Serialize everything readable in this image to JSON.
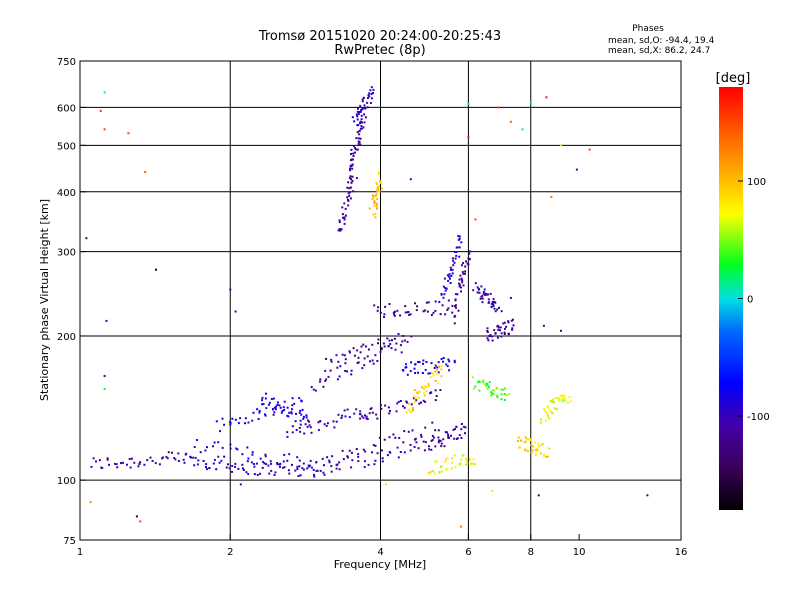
{
  "header": {
    "title_line1": "Tromsø 20151020 20:24:00-20:25:43",
    "title_line2": "RwPretec (8p)",
    "phases_title": "Phases",
    "phases_o": "mean, sd,O: -94.4, 19.4",
    "phases_x": "mean, sd,X:  86.2, 24.7"
  },
  "chart_data": {
    "type": "scatter",
    "title": "Tromsø 20151020 20:24:00-20:25:43",
    "subtitle": "RwPretec (8p)",
    "xlabel": "Frequency [MHz]",
    "ylabel": "Stationary phase Virtual Height [km]",
    "xscale": "log",
    "yscale": "log",
    "xlim": [
      1,
      16
    ],
    "ylim": [
      75,
      750
    ],
    "xticks": [
      1,
      2,
      4,
      6,
      8,
      10,
      16
    ],
    "yticks": [
      75,
      100,
      200,
      300,
      400,
      500,
      600,
      750
    ],
    "grid_x": [
      2,
      4,
      6,
      8
    ],
    "grid_y": [
      100,
      200,
      300,
      400,
      500,
      600
    ],
    "colorbar": {
      "label": "[deg]",
      "ticks": [
        100,
        0,
        -100
      ],
      "range": [
        -180,
        180
      ]
    },
    "traces": [
      {
        "name": "",
        "x": [
          1.05,
          1.6
        ],
        "y": [
          108,
          111
        ],
        "phase": -110
      },
      {
        "name": "",
        "x": [
          1.6,
          2.2
        ],
        "y": [
          111,
          106
        ],
        "phase": -100
      },
      {
        "name": "",
        "x": [
          2.2,
          3.0
        ],
        "y": [
          106,
          105
        ],
        "phase": -105
      },
      {
        "name": "",
        "x": [
          3.0,
          5.0
        ],
        "y": [
          105,
          118
        ],
        "phase": -100
      },
      {
        "name": "",
        "x": [
          5.0,
          5.9
        ],
        "y": [
          118,
          128
        ],
        "phase": -110
      },
      {
        "name": "",
        "x": [
          1.7,
          3.0
        ],
        "y": [
          118,
          108
        ],
        "phase": -95
      },
      {
        "name": "",
        "x": [
          3.0,
          5.2
        ],
        "y": [
          108,
          130
        ],
        "phase": -115
      },
      {
        "name": "",
        "x": [
          1.9,
          2.8
        ],
        "y": [
          130,
          145
        ],
        "phase": -90
      },
      {
        "name": "",
        "x": [
          2.6,
          3.8
        ],
        "y": [
          125,
          140
        ],
        "phase": -105
      },
      {
        "name": "",
        "x": [
          3.6,
          5.3
        ],
        "y": [
          135,
          150
        ],
        "phase": -110
      },
      {
        "name": "",
        "x": [
          2.3,
          2.9
        ],
        "y": [
          150,
          132
        ],
        "phase": -85
      },
      {
        "name": "",
        "x": [
          2.9,
          4.4
        ],
        "y": [
          158,
          190
        ],
        "phase": -110
      },
      {
        "name": "",
        "x": [
          3.1,
          4.6
        ],
        "y": [
          175,
          200
        ],
        "phase": -115
      },
      {
        "name": "",
        "x": [
          3.9,
          5.5
        ],
        "y": [
          225,
          230
        ],
        "phase": -120
      },
      {
        "name": "",
        "x": [
          4.4,
          5.6
        ],
        "y": [
          170,
          175
        ],
        "phase": -80
      },
      {
        "name": "",
        "x": [
          4.5,
          5.3
        ],
        "y": [
          140,
          170
        ],
        "phase": 90
      },
      {
        "name": "",
        "x": [
          5.3,
          5.8
        ],
        "y": [
          240,
          320
        ],
        "phase": -90
      },
      {
        "name": "",
        "x": [
          6.2,
          7.2
        ],
        "y": [
          160,
          150
        ],
        "phase": 40
      },
      {
        "name": "",
        "x": [
          6.5,
          7.4
        ],
        "y": [
          200,
          210
        ],
        "phase": -120
      },
      {
        "name": "",
        "x": [
          7.6,
          8.6
        ],
        "y": [
          120,
          115
        ],
        "phase": 90
      },
      {
        "name": "",
        "x": [
          8.4,
          9.5
        ],
        "y": [
          135,
          150
        ],
        "phase": 70
      },
      {
        "name": "",
        "x": [
          3.3,
          3.55
        ],
        "y": [
          330,
          440
        ],
        "phase": -115
      },
      {
        "name": "",
        "x": [
          3.45,
          3.7
        ],
        "y": [
          440,
          560
        ],
        "phase": -110
      },
      {
        "name": "",
        "x": [
          3.55,
          3.85
        ],
        "y": [
          560,
          640
        ],
        "phase": -100
      },
      {
        "name": "",
        "x": [
          3.85,
          4.0
        ],
        "y": [
          360,
          430
        ],
        "phase": 100
      },
      {
        "name": "",
        "x": [
          5.6,
          6.0
        ],
        "y": [
          220,
          300
        ],
        "phase": -120
      },
      {
        "name": "",
        "x": [
          6.2,
          6.9
        ],
        "y": [
          250,
          230
        ],
        "phase": -110
      },
      {
        "name": "",
        "x": [
          5.0,
          6.2
        ],
        "y": [
          105,
          112
        ],
        "phase": 70
      }
    ],
    "points": [
      {
        "x": 1.12,
        "y": 645,
        "phase": 5
      },
      {
        "x": 1.1,
        "y": 590,
        "phase": 160
      },
      {
        "x": 1.12,
        "y": 540,
        "phase": 150
      },
      {
        "x": 1.25,
        "y": 530,
        "phase": 150
      },
      {
        "x": 1.35,
        "y": 440,
        "phase": 140
      },
      {
        "x": 1.42,
        "y": 275,
        "phase": -170
      },
      {
        "x": 1.13,
        "y": 215,
        "phase": -100
      },
      {
        "x": 1.12,
        "y": 165,
        "phase": -110
      },
      {
        "x": 1.12,
        "y": 155,
        "phase": 30
      },
      {
        "x": 1.03,
        "y": 320,
        "phase": -130
      },
      {
        "x": 1.32,
        "y": 82,
        "phase": 150
      },
      {
        "x": 1.3,
        "y": 84,
        "phase": -150
      },
      {
        "x": 1.05,
        "y": 90,
        "phase": 120
      },
      {
        "x": 2.0,
        "y": 250,
        "phase": -110
      },
      {
        "x": 2.05,
        "y": 225,
        "phase": -110
      },
      {
        "x": 6.0,
        "y": 610,
        "phase": 10
      },
      {
        "x": 6.0,
        "y": 520,
        "phase": 170
      },
      {
        "x": 6.9,
        "y": 600,
        "phase": 150
      },
      {
        "x": 7.3,
        "y": 560,
        "phase": 140
      },
      {
        "x": 7.7,
        "y": 540,
        "phase": 20
      },
      {
        "x": 8.0,
        "y": 615,
        "phase": 20
      },
      {
        "x": 8.6,
        "y": 630,
        "phase": 170
      },
      {
        "x": 9.2,
        "y": 500,
        "phase": 60
      },
      {
        "x": 10.5,
        "y": 490,
        "phase": 150
      },
      {
        "x": 9.9,
        "y": 445,
        "phase": -110
      },
      {
        "x": 8.8,
        "y": 390,
        "phase": 130
      },
      {
        "x": 9.2,
        "y": 205,
        "phase": -110
      },
      {
        "x": 8.5,
        "y": 210,
        "phase": -110
      },
      {
        "x": 5.8,
        "y": 80,
        "phase": 130
      },
      {
        "x": 6.7,
        "y": 95,
        "phase": 90
      },
      {
        "x": 8.3,
        "y": 93,
        "phase": -130
      },
      {
        "x": 13.7,
        "y": 93,
        "phase": -120
      },
      {
        "x": 6.2,
        "y": 350,
        "phase": 150
      },
      {
        "x": 7.3,
        "y": 240,
        "phase": -110
      },
      {
        "x": 4.6,
        "y": 425,
        "phase": -100
      },
      {
        "x": 4.1,
        "y": 98,
        "phase": 60
      },
      {
        "x": 2.1,
        "y": 98,
        "phase": -100
      }
    ]
  }
}
